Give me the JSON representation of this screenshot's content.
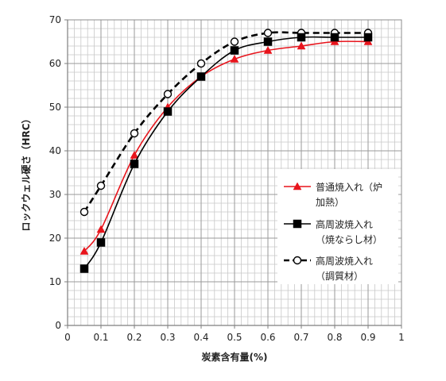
{
  "chart_data": {
    "type": "line",
    "title": "",
    "xlabel": "炭素含有量(%)",
    "ylabel": "ロックウェル硬さ（HRC）",
    "xlim": [
      0,
      1
    ],
    "ylim": [
      0,
      70
    ],
    "x_major_ticks": [
      0,
      0.1,
      0.2,
      0.3,
      0.4,
      0.5,
      0.6,
      0.7,
      0.8,
      0.9,
      1
    ],
    "x_tick_labels": [
      "0",
      "0.1",
      "0.2",
      "0.3",
      "0.4",
      "0.5",
      "0.6",
      "0.7",
      "0.8",
      "0.9",
      "1"
    ],
    "y_major_ticks": [
      0,
      10,
      20,
      30,
      40,
      50,
      60,
      70
    ],
    "y_tick_labels": [
      "0",
      "10",
      "20",
      "30",
      "40",
      "50",
      "60",
      "70"
    ],
    "grid": true,
    "legend_position": "right",
    "series": [
      {
        "name": [
          "普通焼入れ（炉",
          "加熱）"
        ],
        "color": "#e8141c",
        "marker": "triangle",
        "line_style": "solid",
        "x": [
          0.05,
          0.1,
          0.2,
          0.3,
          0.4,
          0.5,
          0.6,
          0.7,
          0.8,
          0.9
        ],
        "y": [
          17,
          22,
          39,
          50,
          57,
          61,
          63,
          64,
          65,
          65
        ]
      },
      {
        "name": [
          "高周波焼入れ",
          "（焼ならし材）"
        ],
        "color": "#000000",
        "marker": "square",
        "line_style": "solid",
        "x": [
          0.05,
          0.1,
          0.2,
          0.3,
          0.4,
          0.5,
          0.6,
          0.7,
          0.8,
          0.9
        ],
        "y": [
          13,
          19,
          37,
          49,
          57,
          63,
          65,
          66,
          66,
          66
        ]
      },
      {
        "name": [
          "高周波焼入れ",
          "（調質材）"
        ],
        "color": "#000000",
        "marker": "circle-open",
        "line_style": "dashed",
        "x": [
          0.05,
          0.1,
          0.2,
          0.3,
          0.4,
          0.5,
          0.6,
          0.7,
          0.8,
          0.9
        ],
        "y": [
          26,
          32,
          44,
          53,
          60,
          65,
          67,
          67,
          67,
          67
        ]
      }
    ]
  }
}
